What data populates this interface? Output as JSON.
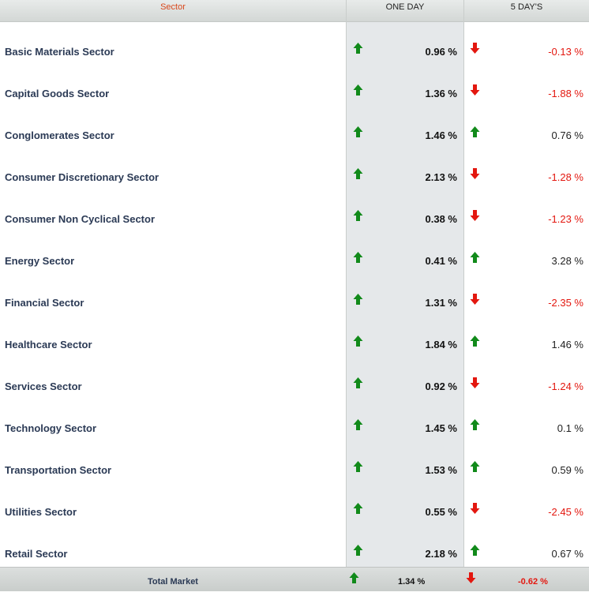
{
  "header": {
    "sector_label": "Sector",
    "one_day_label": "ONE DAY",
    "five_day_label": "5 DAY'S"
  },
  "colors": {
    "up": "#118a1a",
    "down": "#e3170f",
    "header_accent": "#d9481c"
  },
  "rows": [
    {
      "name": "Basic Materials Sector",
      "one_day": "0.96 %",
      "one_day_dir": "up",
      "five_day": "-0.13 %",
      "five_day_dir": "down"
    },
    {
      "name": "Capital Goods Sector",
      "one_day": "1.36 %",
      "one_day_dir": "up",
      "five_day": "-1.88 %",
      "five_day_dir": "down"
    },
    {
      "name": "Conglomerates Sector",
      "one_day": "1.46 %",
      "one_day_dir": "up",
      "five_day": "0.76 %",
      "five_day_dir": "up"
    },
    {
      "name": "Consumer Discretionary Sector",
      "one_day": "2.13 %",
      "one_day_dir": "up",
      "five_day": "-1.28 %",
      "five_day_dir": "down"
    },
    {
      "name": "Consumer Non Cyclical Sector",
      "one_day": "0.38 %",
      "one_day_dir": "up",
      "five_day": "-1.23 %",
      "five_day_dir": "down"
    },
    {
      "name": "Energy Sector",
      "one_day": "0.41 %",
      "one_day_dir": "up",
      "five_day": "3.28 %",
      "five_day_dir": "up"
    },
    {
      "name": "Financial Sector",
      "one_day": "1.31 %",
      "one_day_dir": "up",
      "five_day": "-2.35 %",
      "five_day_dir": "down"
    },
    {
      "name": "Healthcare Sector",
      "one_day": "1.84 %",
      "one_day_dir": "up",
      "five_day": "1.46 %",
      "five_day_dir": "up"
    },
    {
      "name": "Services Sector",
      "one_day": "0.92 %",
      "one_day_dir": "up",
      "five_day": "-1.24 %",
      "five_day_dir": "down"
    },
    {
      "name": "Technology Sector",
      "one_day": "1.45 %",
      "one_day_dir": "up",
      "five_day": "0.1 %",
      "five_day_dir": "up"
    },
    {
      "name": "Transportation Sector",
      "one_day": "1.53 %",
      "one_day_dir": "up",
      "five_day": "0.59 %",
      "five_day_dir": "up"
    },
    {
      "name": "Utilities Sector",
      "one_day": "0.55 %",
      "one_day_dir": "up",
      "five_day": "-2.45 %",
      "five_day_dir": "down"
    },
    {
      "name": "Retail Sector",
      "one_day": "2.18 %",
      "one_day_dir": "up",
      "five_day": "0.67 %",
      "five_day_dir": "up"
    }
  ],
  "footer": {
    "label": "Total Market",
    "one_day": "1.34 %",
    "one_day_dir": "up",
    "five_day": "-0.62 %",
    "five_day_dir": "down"
  }
}
